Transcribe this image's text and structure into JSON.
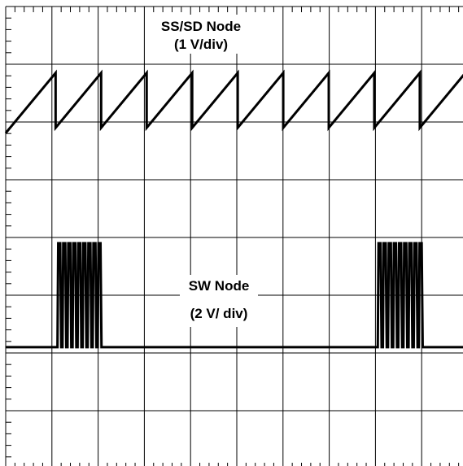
{
  "chart_data": {
    "type": "line",
    "title": "",
    "xlabel": "",
    "ylabel": "",
    "grid": true,
    "divisions": {
      "x": 10,
      "y": 8
    },
    "minor_ticks_per_division": 5,
    "xlim": [
      0,
      10
    ],
    "ylim": [
      0,
      8
    ],
    "annotations": [
      {
        "lines": [
          "SS/SD Node",
          "(1 V/div)"
        ]
      },
      {
        "lines": [
          "SW Node",
          "(2 V/ div)"
        ]
      }
    ],
    "series": [
      {
        "name": "SS/SD Node",
        "shape": "sawtooth",
        "low_div": 5.9,
        "high_div": 6.85,
        "period_div": 0.985,
        "ramp_start_x": 0,
        "first_reset_x": 1.08,
        "end_x": 10
      },
      {
        "name": "SW Node",
        "shape": "burst",
        "baseline_div": 2.1,
        "burst_high_div": 3.9,
        "bursts": [
          {
            "start_x": 1.12,
            "end_x": 2.1,
            "pulses": 9
          },
          {
            "start_x": 8.05,
            "end_x": 9.05,
            "pulses": 9
          }
        ],
        "end_x": 10
      }
    ]
  }
}
